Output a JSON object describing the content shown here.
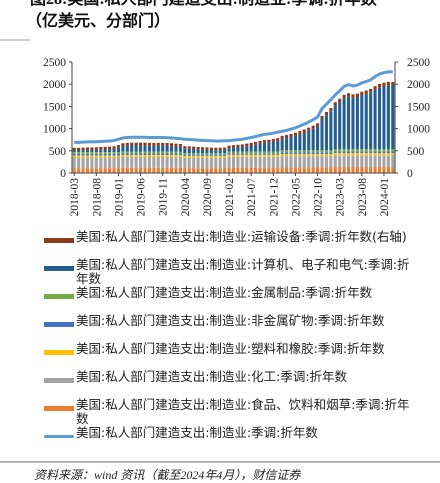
{
  "chart_data": {
    "type": "bar",
    "title": "图28:美国:私人部门建造支出:制造业:季调:折年数",
    "subtitle": "（亿美元、分部门）",
    "source": "资料来源：wind 资讯（截至2024年4月），财信证券",
    "categories": [
      "2018-03",
      null,
      null,
      null,
      null,
      "2018-08",
      null,
      null,
      null,
      null,
      "2019-01",
      null,
      null,
      null,
      null,
      "2019-06",
      null,
      null,
      null,
      null,
      "2019-11",
      null,
      null,
      null,
      null,
      "2020-04",
      null,
      null,
      null,
      null,
      "2020-09",
      null,
      null,
      null,
      null,
      "2021-02",
      null,
      null,
      null,
      null,
      "2021-07",
      null,
      null,
      null,
      null,
      "2021-12",
      null,
      null,
      null,
      null,
      "2022-05",
      null,
      null,
      null,
      null,
      "2022-10",
      null,
      null,
      null,
      null,
      "2023-03",
      null,
      null,
      null,
      null,
      "2023-08",
      null,
      null,
      null,
      null,
      "2024-01",
      null,
      null
    ],
    "ylim": [
      0,
      2500
    ],
    "yticks": [
      0,
      500,
      1000,
      1500,
      2000,
      2500
    ],
    "y2lim": [
      0,
      2500
    ],
    "y2ticks": [
      0,
      500,
      1000,
      1500,
      2000,
      2500
    ],
    "series": [
      {
        "name": "美国:私人部门建造支出:制造业:运输设备:季调:折年数(右轴)",
        "type": "bar",
        "axis": "y2",
        "color": "#8b3a1a",
        "values": [
          60,
          60,
          60,
          60,
          60,
          60,
          60,
          60,
          60,
          60,
          60,
          65,
          65,
          65,
          65,
          65,
          65,
          65,
          65,
          65,
          65,
          65,
          65,
          65,
          65,
          55,
          55,
          55,
          55,
          55,
          55,
          55,
          55,
          55,
          55,
          60,
          60,
          60,
          60,
          60,
          60,
          60,
          60,
          60,
          60,
          60,
          60,
          70,
          70,
          70,
          70,
          70,
          70,
          70,
          70,
          70,
          70,
          70,
          70,
          75,
          75,
          75,
          75,
          75,
          75,
          75,
          75,
          75,
          75,
          75,
          75,
          75,
          75
        ]
      },
      {
        "name": "美国:私人部门建造支出:制造业:计算机、电子和电气:季调:折年数",
        "type": "bar",
        "color": "#255e91",
        "values": [
          37,
          37,
          42,
          46,
          46,
          50,
          55,
          59,
          64,
          72,
          99,
          125,
          134,
          138,
          138,
          138,
          138,
          134,
          134,
          134,
          134,
          130,
          125,
          116,
          108,
          99,
          94,
          90,
          81,
          77,
          72,
          68,
          64,
          64,
          68,
          72,
          81,
          90,
          99,
          116,
          134,
          152,
          178,
          196,
          204,
          222,
          240,
          257,
          275,
          301,
          328,
          363,
          398,
          442,
          486,
          539,
          706,
          794,
          882,
          979,
          1058,
          1146,
          1181,
          1155,
          1172,
          1216,
          1243,
          1278,
          1340,
          1392,
          1419,
          1436,
          1432
        ]
      },
      {
        "name": "美国:私人部门建造支出:制造业:金属制品:季调:折年数",
        "type": "bar",
        "color": "#70ad47",
        "values": [
          40,
          40,
          40,
          40,
          40,
          40,
          40,
          40,
          40,
          40,
          40,
          40,
          40,
          40,
          40,
          40,
          40,
          40,
          40,
          40,
          40,
          40,
          40,
          40,
          40,
          35,
          35,
          35,
          35,
          35,
          35,
          35,
          35,
          35,
          35,
          40,
          40,
          40,
          40,
          40,
          40,
          40,
          40,
          40,
          40,
          40,
          40,
          45,
          45,
          45,
          45,
          45,
          45,
          45,
          45,
          45,
          45,
          45,
          45,
          50,
          50,
          50,
          50,
          50,
          50,
          50,
          50,
          50,
          50,
          50,
          50,
          50,
          50
        ]
      },
      {
        "name": "美国:私人部门建造支出:制造业:非金属矿物:季调:折年数",
        "type": "bar",
        "color": "#4472c4",
        "values": [
          35,
          35,
          35,
          35,
          35,
          35,
          35,
          35,
          35,
          35,
          35,
          35,
          35,
          35,
          35,
          35,
          35,
          35,
          35,
          35,
          35,
          35,
          35,
          35,
          35,
          30,
          30,
          30,
          30,
          30,
          30,
          30,
          30,
          30,
          30,
          35,
          35,
          35,
          35,
          35,
          35,
          35,
          35,
          35,
          35,
          35,
          35,
          40,
          40,
          40,
          40,
          40,
          40,
          40,
          40,
          40,
          40,
          40,
          40,
          40,
          40,
          40,
          40,
          40,
          40,
          40,
          40,
          40,
          40,
          40,
          40,
          40,
          40
        ]
      },
      {
        "name": "美国:私人部门建造支出:制造业:塑料和橡胶:季调:折年数",
        "type": "bar",
        "color": "#ffc000",
        "values": [
          45,
          45,
          45,
          45,
          45,
          45,
          45,
          45,
          45,
          45,
          45,
          45,
          45,
          45,
          45,
          45,
          45,
          45,
          45,
          45,
          45,
          45,
          45,
          45,
          45,
          40,
          40,
          40,
          40,
          40,
          40,
          40,
          40,
          40,
          40,
          45,
          45,
          45,
          45,
          45,
          45,
          45,
          45,
          45,
          45,
          45,
          45,
          45,
          45,
          45,
          45,
          45,
          45,
          45,
          45,
          45,
          45,
          45,
          45,
          50,
          50,
          50,
          50,
          50,
          50,
          50,
          50,
          50,
          50,
          50,
          50,
          50,
          50
        ]
      },
      {
        "name": "美国:私人部门建造支出:制造业:化工:季调:折年数",
        "type": "bar",
        "color": "#a5a5a5",
        "values": [
          240,
          240,
          240,
          240,
          240,
          240,
          240,
          240,
          240,
          240,
          240,
          245,
          245,
          245,
          245,
          245,
          245,
          245,
          245,
          245,
          245,
          245,
          245,
          245,
          245,
          235,
          235,
          235,
          235,
          235,
          235,
          235,
          235,
          235,
          235,
          245,
          245,
          245,
          245,
          245,
          245,
          245,
          245,
          245,
          245,
          245,
          245,
          255,
          255,
          255,
          255,
          255,
          255,
          255,
          255,
          255,
          255,
          255,
          255,
          265,
          265,
          265,
          265,
          265,
          265,
          265,
          265,
          265,
          265,
          265,
          265,
          265,
          265
        ]
      },
      {
        "name": "美国:私人部门建造支出:制造业:食品、饮料和烟草:季调:折年数",
        "type": "bar",
        "color": "#ed7d31",
        "values": [
          110,
          110,
          110,
          110,
          110,
          110,
          110,
          110,
          110,
          110,
          110,
          115,
          115,
          115,
          115,
          115,
          115,
          115,
          115,
          115,
          115,
          115,
          115,
          115,
          115,
          110,
          110,
          110,
          110,
          110,
          110,
          110,
          110,
          110,
          110,
          120,
          120,
          120,
          120,
          120,
          120,
          120,
          120,
          120,
          120,
          120,
          120,
          125,
          125,
          125,
          125,
          125,
          125,
          125,
          125,
          125,
          125,
          125,
          125,
          135,
          135,
          135,
          135,
          135,
          135,
          135,
          135,
          135,
          135,
          135,
          135,
          135,
          135
        ]
      },
      {
        "name": "美国:私人部门建造支出:制造业:季调:折年数",
        "type": "line",
        "color": "#5b9bd5",
        "values": [
          690,
          690,
          695,
          700,
          700,
          705,
          710,
          715,
          720,
          730,
          760,
          790,
          800,
          805,
          805,
          805,
          805,
          800,
          800,
          800,
          800,
          795,
          790,
          780,
          770,
          760,
          755,
          750,
          740,
          735,
          730,
          725,
          720,
          720,
          725,
          730,
          740,
          750,
          760,
          780,
          800,
          820,
          850,
          870,
          880,
          900,
          920,
          940,
          960,
          990,
          1020,
          1060,
          1100,
          1150,
          1200,
          1260,
          1450,
          1550,
          1650,
          1760,
          1850,
          1950,
          1990,
          1960,
          1980,
          2030,
          2060,
          2100,
          2170,
          2230,
          2260,
          2280,
          2275
        ]
      }
    ]
  }
}
